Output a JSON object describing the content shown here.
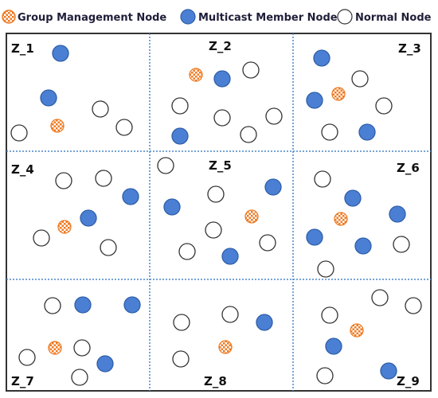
{
  "legend": {
    "group_management": "Group Management  Node",
    "multicast_member": "Multicast Member Node",
    "normal": "Normal Node"
  },
  "colors": {
    "member_fill": "#4a7fd4",
    "member_stroke": "#2f5fa8",
    "normal_stroke": "#333333",
    "group_orange": "#ee7a22",
    "border": "#333333",
    "divider": "#4a86c8"
  },
  "zones": [
    "Z_1",
    "Z_2",
    "Z_3",
    "Z_4",
    "Z_5",
    "Z_6",
    "Z_7",
    "Z_8",
    "Z_9"
  ]
}
